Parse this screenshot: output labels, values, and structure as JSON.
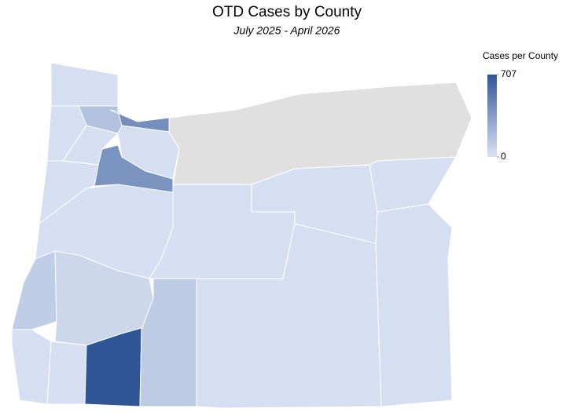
{
  "chart_data": {
    "type": "choropleth",
    "title": "OTD Cases by County",
    "subtitle": "July 2025 - April 2026",
    "legend_title": "Cases per County",
    "values": [
      20,
      170,
      420,
      20,
      20,
      20,
      400,
      20,
      20,
      110,
      60,
      20,
      20,
      707,
      120,
      20,
      20,
      20,
      20,
      20,
      null
    ],
    "colorlim": [
      0,
      707
    ],
    "colorticks": [
      707,
      0
    ],
    "color_low": "#dbe3f4",
    "color_high": "#2f5597",
    "null_color": "#e0e0e0"
  }
}
